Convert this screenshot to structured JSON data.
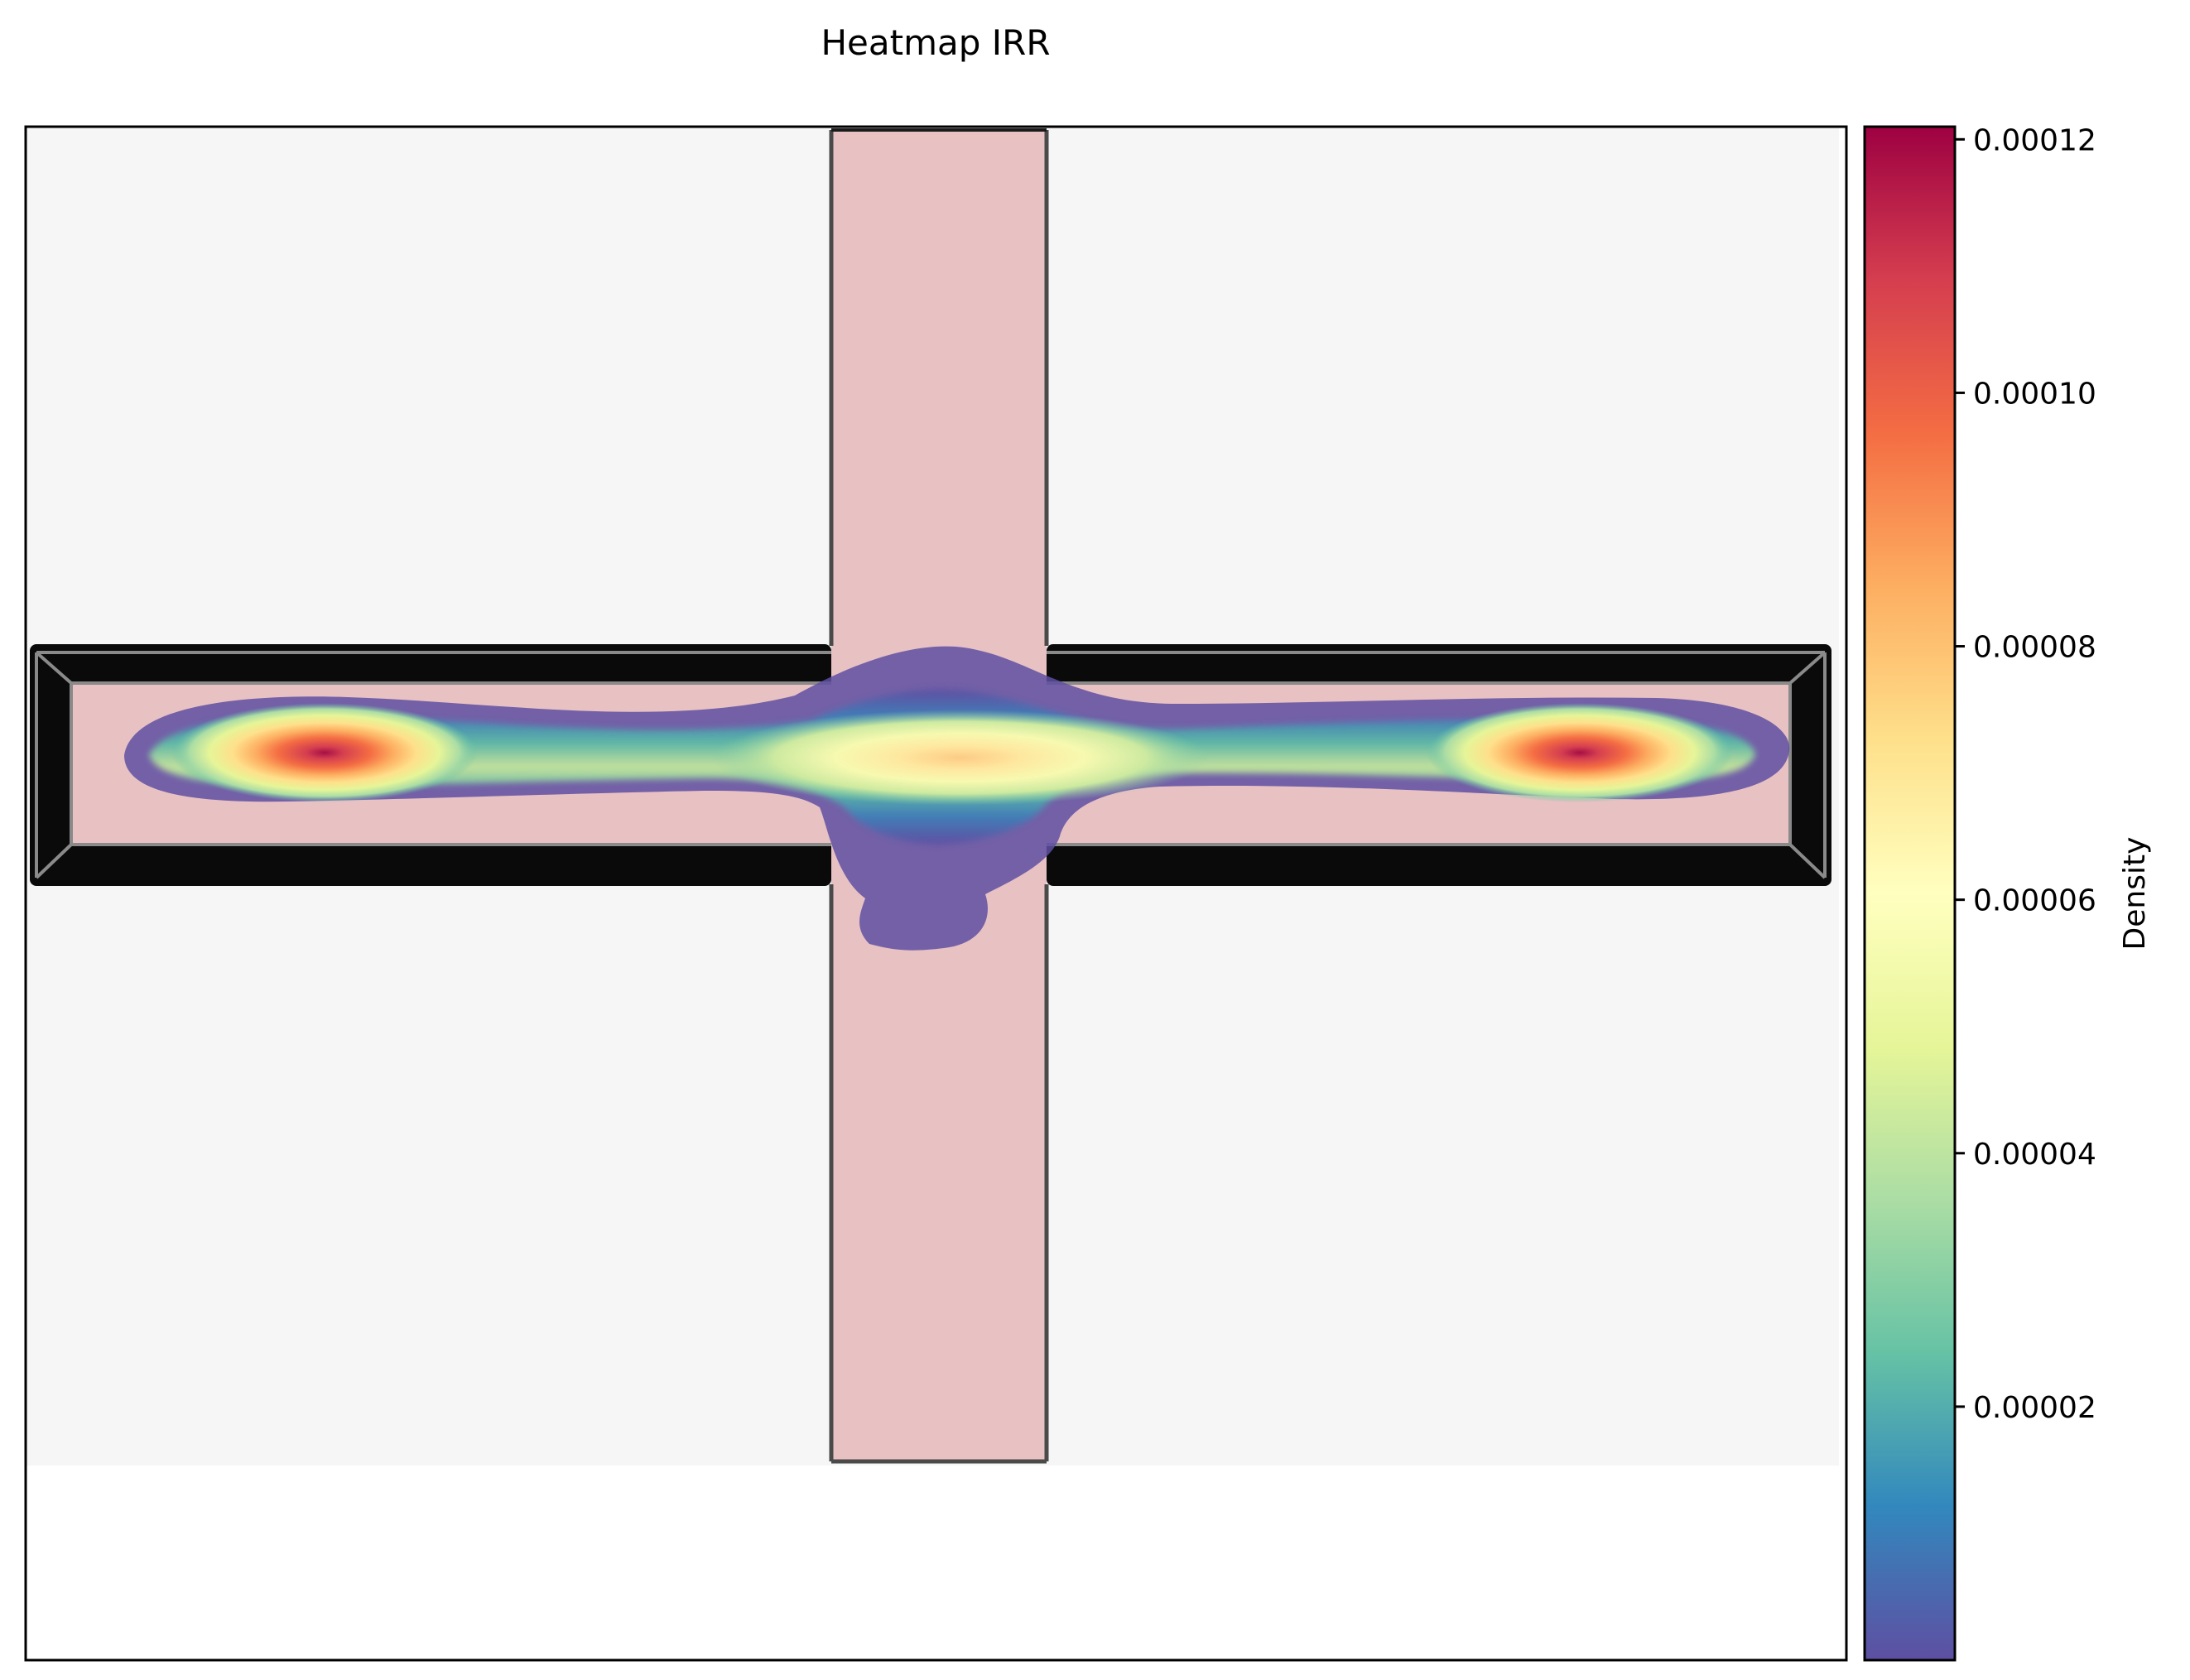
{
  "chart_data": {
    "type": "heatmap",
    "title": "Heatmap IRR",
    "xlabel": "",
    "ylabel": "",
    "colorbar": {
      "label": "Density",
      "colormap": "Spectral_r",
      "range": [
        0,
        0.000121
      ],
      "ticks": [
        {
          "value": 2e-05,
          "label": "0.00002"
        },
        {
          "value": 4e-05,
          "label": "0.00004"
        },
        {
          "value": 6e-05,
          "label": "0.00006"
        },
        {
          "value": 8e-05,
          "label": "0.00008"
        },
        {
          "value": 0.0001,
          "label": "0.00010"
        },
        {
          "value": 0.00012,
          "label": "0.00012"
        }
      ]
    },
    "hotspots": [
      {
        "name": "left-arm",
        "peak": 0.000119
      },
      {
        "name": "center",
        "peak": 7.4e-05
      },
      {
        "name": "right-arm",
        "peak": 0.000119
      }
    ],
    "background_map": "cross-shaped corridor floor plan",
    "grid": false,
    "colors": {
      "corridor_fill": "#e8c1c3",
      "wall": "#0a0a0a",
      "floor_background": "#f6f6f6",
      "low_density": "#5e4fa2",
      "high_density": "#9e0142"
    }
  }
}
